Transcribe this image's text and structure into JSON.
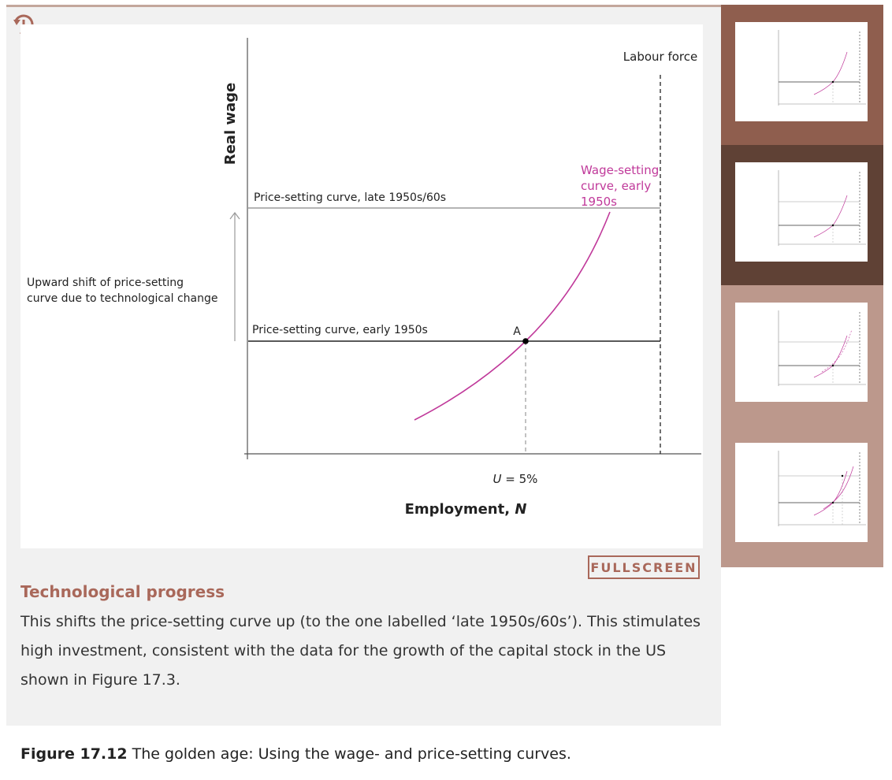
{
  "figure": {
    "labels": {
      "ylabel": "Real wage",
      "xlabel_text": "Employment, ",
      "xlabel_var": "N",
      "labour_force": "Labour force",
      "wage_setting_line1": "Wage-setting",
      "wage_setting_line2": "curve, early",
      "wage_setting_line3": "1950s",
      "ps_late": "Price-setting curve, late 1950s/60s",
      "ps_early": "Price-setting curve, early 1950s",
      "shift_line1": "Upward shift of price-setting",
      "shift_line2": "curve due to technological change",
      "point_a": "A",
      "u_var": "U",
      "u_value": " = 5%"
    }
  },
  "step": {
    "fullscreen_label": "FULLSCREEN",
    "title": "Technological progress",
    "text": "This shifts the price-setting curve up (to the one labelled ‘late 1950s/60s’). This stimulates high investment, consistent with the data for the growth of the capital stock in the US shown in Figure 17.3."
  },
  "caption": {
    "number": "Figure 17.12",
    "text": " The golden age: Using the wage- and price-setting curves."
  },
  "thumbnails": [
    {
      "border_color": "#8f5e4e",
      "active": false
    },
    {
      "border_color": "#5f4135",
      "active": true
    },
    {
      "border_color": "#bc988c",
      "active": false
    },
    {
      "border_color": "#bc988c",
      "active": false
    }
  ],
  "colors": {
    "accent": "#a9685a",
    "wage_curve": "#c0399a",
    "thumb_panel": "#bc988c"
  }
}
